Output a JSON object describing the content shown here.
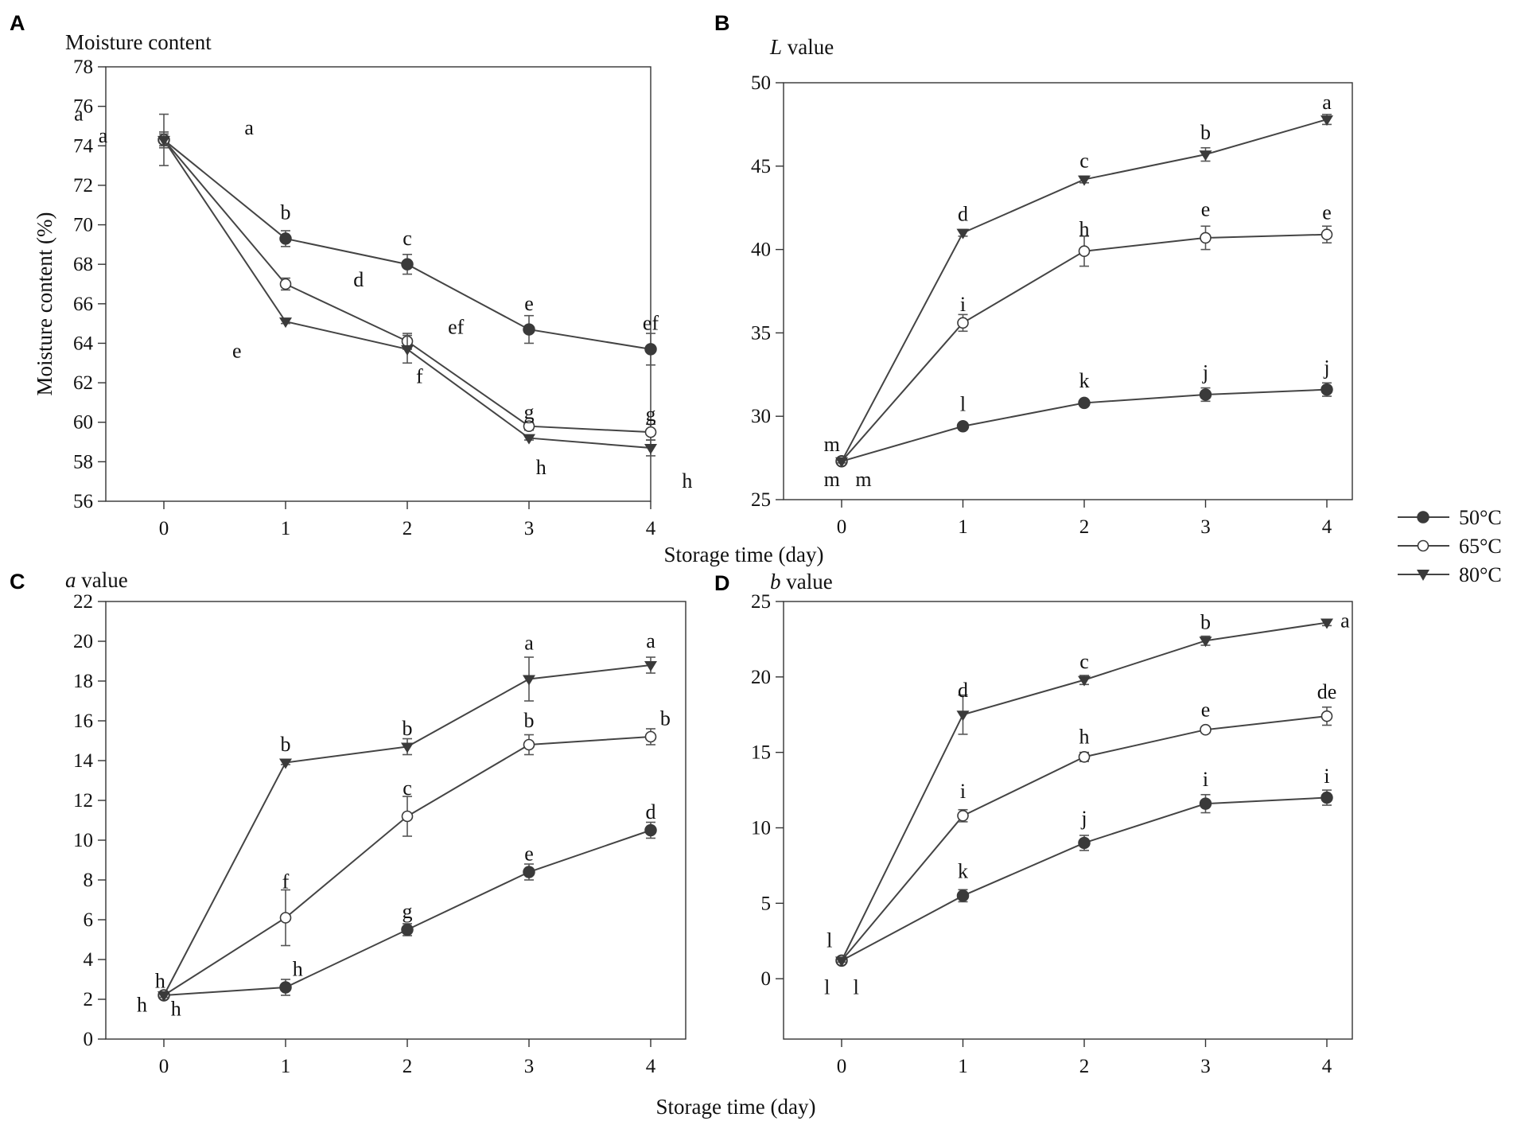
{
  "legend": {
    "entries": [
      {
        "label": "50°C",
        "marker": "filled-circle"
      },
      {
        "label": "65°C",
        "marker": "open-circle"
      },
      {
        "label": "80°C",
        "marker": "filled-triangle-down"
      }
    ]
  },
  "xlabel_shared_top": "Storage time (day)",
  "xlabel_bottom": "Storage time (day)",
  "colors": {
    "line": "#444444",
    "marker": "#3a3a3a",
    "frame": "#333333"
  },
  "chart_data": [
    {
      "panel": "A",
      "type": "line",
      "title": "Moisture content",
      "ylabel": "Moisture content (%)",
      "ylim": [
        56,
        78
      ],
      "yticks": [
        56,
        58,
        60,
        62,
        64,
        66,
        68,
        70,
        72,
        74,
        76,
        78
      ],
      "x": [
        0,
        1,
        2,
        3,
        4
      ],
      "xticks": [
        "0",
        "1",
        "2",
        "3",
        "4"
      ],
      "series": [
        {
          "name": "50°C",
          "values": [
            74.3,
            69.3,
            68.0,
            64.7,
            63.7
          ],
          "errors": [
            1.3,
            0.4,
            0.5,
            0.7,
            0.8
          ],
          "letters": [
            {
              "x": 0,
              "text": "a",
              "dx": -0.7,
              "dy": 1.3
            },
            {
              "x": 1,
              "text": "b",
              "dy": 1.3
            },
            {
              "x": 2,
              "text": "c",
              "dy": 1.3
            },
            {
              "x": 3,
              "text": "e",
              "dy": 1.3
            },
            {
              "x": 4,
              "text": "ef",
              "dy": 1.3
            }
          ]
        },
        {
          "name": "65°C",
          "values": [
            74.3,
            67.0,
            64.1,
            59.8,
            59.5
          ],
          "errors": [
            0.4,
            0.3,
            0.4,
            0.2,
            0.4
          ],
          "letters": [
            {
              "x": 0,
              "text": "a",
              "dx": -0.5,
              "dy": 0.2
            },
            {
              "x": 1,
              "text": "d",
              "dx": 0.6,
              "dy": 0.2
            },
            {
              "x": 2,
              "text": "ef",
              "dx": 0.4,
              "dy": 0.7
            },
            {
              "x": 3,
              "text": "g",
              "dy": 0.7
            },
            {
              "x": 4,
              "text": "g",
              "dy": 0.9
            }
          ]
        },
        {
          "name": "80°C",
          "values": [
            74.3,
            65.1,
            63.7,
            59.2,
            58.7
          ],
          "errors": [
            0.3,
            0.1,
            0.7,
            0.1,
            0.4
          ],
          "letters": [
            {
              "x": 0,
              "text": "a",
              "dx": 0.7,
              "dy": 0.6
            },
            {
              "x": 1,
              "text": "e",
              "dx": -0.4,
              "dy": -1.5
            },
            {
              "x": 2,
              "text": "f",
              "dx": 0.1,
              "dy": -1.4
            },
            {
              "x": 3,
              "text": "h",
              "dx": 0.1,
              "dy": -1.5
            },
            {
              "x": 4,
              "text": "h",
              "dx": 0.3,
              "dy": -1.7
            }
          ]
        }
      ]
    },
    {
      "panel": "B",
      "type": "line",
      "title": "L value",
      "title_var": "L",
      "title_rest": " value",
      "ylabel": "",
      "ylim": [
        25,
        50
      ],
      "yticks": [
        25,
        30,
        35,
        40,
        45,
        50
      ],
      "x": [
        0,
        1,
        2,
        3,
        4
      ],
      "xticks": [
        "0",
        "1",
        "2",
        "3",
        "4"
      ],
      "series": [
        {
          "name": "50°C",
          "values": [
            27.3,
            29.4,
            30.8,
            31.3,
            31.6
          ],
          "errors": [
            0.2,
            0.2,
            0.2,
            0.4,
            0.4
          ],
          "letters": [
            {
              "x": 0,
              "text": "m",
              "dx": -0.08,
              "dy": 1.0
            },
            {
              "x": 1,
              "text": "l",
              "dy": 1.3
            },
            {
              "x": 2,
              "text": "k",
              "dy": 1.3
            },
            {
              "x": 3,
              "text": "j",
              "dy": 1.3
            },
            {
              "x": 4,
              "text": "j",
              "dy": 1.3
            }
          ]
        },
        {
          "name": "65°C",
          "values": [
            27.3,
            35.6,
            39.9,
            40.7,
            40.9
          ],
          "errors": [
            0.2,
            0.5,
            0.9,
            0.7,
            0.5
          ],
          "letters": [
            {
              "x": 0,
              "text": "m",
              "dx": -0.08,
              "dy": -1.1
            },
            {
              "x": 1,
              "text": "i",
              "dy": 1.1
            },
            {
              "x": 2,
              "text": "h",
              "dy": 1.3
            },
            {
              "x": 3,
              "text": "e",
              "dy": 1.7
            },
            {
              "x": 4,
              "text": "e",
              "dy": 1.3
            }
          ]
        },
        {
          "name": "80°C",
          "values": [
            27.3,
            41.0,
            44.2,
            45.7,
            47.8
          ],
          "errors": [
            0.1,
            0.2,
            0.2,
            0.4,
            0.3
          ],
          "letters": [
            {
              "x": 0,
              "text": "m",
              "dx": 0.18,
              "dy": -1.1
            },
            {
              "x": 1,
              "text": "d",
              "dy": 1.1
            },
            {
              "x": 2,
              "text": "c",
              "dy": 1.1
            },
            {
              "x": 3,
              "text": "b",
              "dy": 1.3
            },
            {
              "x": 4,
              "text": "a",
              "dy": 1.0
            }
          ]
        }
      ]
    },
    {
      "panel": "C",
      "type": "line",
      "title": "a value",
      "title_var": "a",
      "title_rest": " value",
      "ylabel": "",
      "ylim": [
        0,
        22
      ],
      "yticks": [
        0,
        2,
        4,
        6,
        8,
        10,
        12,
        14,
        16,
        18,
        20,
        22
      ],
      "x": [
        0,
        1,
        2,
        3,
        4
      ],
      "xticks": [
        "0",
        "1",
        "2",
        "3",
        "4"
      ],
      "series": [
        {
          "name": "50°C",
          "values": [
            2.2,
            2.6,
            5.5,
            8.4,
            10.5
          ],
          "errors": [
            0.1,
            0.4,
            0.3,
            0.4,
            0.4
          ],
          "letters": [
            {
              "x": 0,
              "text": "h",
              "dx": -0.18,
              "dy": -0.5
            },
            {
              "x": 1,
              "text": "h",
              "dx": 0.1,
              "dy": 0.9
            },
            {
              "x": 2,
              "text": "g",
              "dy": 0.9
            },
            {
              "x": 3,
              "text": "e",
              "dy": 0.9
            },
            {
              "x": 4,
              "text": "d",
              "dy": 0.9
            }
          ]
        },
        {
          "name": "65°C",
          "values": [
            2.2,
            6.1,
            11.2,
            14.8,
            15.2
          ],
          "errors": [
            0.1,
            1.4,
            1.0,
            0.5,
            0.4
          ],
          "letters": [
            {
              "x": 0,
              "text": "h",
              "dx": -0.03,
              "dy": 0.7
            },
            {
              "x": 1,
              "text": "f",
              "dy": 1.8
            },
            {
              "x": 2,
              "text": "c",
              "dy": 1.4
            },
            {
              "x": 3,
              "text": "b",
              "dy": 1.2
            },
            {
              "x": 4,
              "text": "b",
              "dx": 0.12,
              "dy": 0.9
            }
          ]
        },
        {
          "name": "80°C",
          "values": [
            2.2,
            13.9,
            14.7,
            18.1,
            18.8
          ],
          "errors": [
            0.1,
            0.1,
            0.4,
            1.1,
            0.4
          ],
          "letters": [
            {
              "x": 0,
              "text": "h",
              "dx": 0.1,
              "dy": -0.7
            },
            {
              "x": 1,
              "text": "b",
              "dy": 0.9
            },
            {
              "x": 2,
              "text": "b",
              "dy": 0.9
            },
            {
              "x": 3,
              "text": "a",
              "dy": 1.8
            },
            {
              "x": 4,
              "text": "a",
              "dy": 1.2
            }
          ]
        }
      ]
    },
    {
      "panel": "D",
      "type": "line",
      "title": "b value",
      "title_var": "b",
      "title_rest": " value",
      "ylabel": "",
      "ylim": [
        -4,
        25
      ],
      "yticks": [
        0,
        5,
        10,
        15,
        20,
        25
      ],
      "x": [
        0,
        1,
        2,
        3,
        4
      ],
      "xticks": [
        "0",
        "1",
        "2",
        "3",
        "4"
      ],
      "series": [
        {
          "name": "50°C",
          "values": [
            1.2,
            5.5,
            9.0,
            11.6,
            12.0
          ],
          "errors": [
            0.2,
            0.4,
            0.5,
            0.6,
            0.5
          ],
          "letters": [
            {
              "x": 0,
              "text": "l",
              "dx": -0.12,
              "dy": -1.8
            },
            {
              "x": 1,
              "text": "k",
              "dy": 1.6
            },
            {
              "x": 2,
              "text": "j",
              "dy": 1.6
            },
            {
              "x": 3,
              "text": "i",
              "dy": 1.6
            },
            {
              "x": 4,
              "text": "i",
              "dy": 1.4
            }
          ]
        },
        {
          "name": "65°C",
          "values": [
            1.2,
            10.8,
            14.7,
            16.5,
            17.4
          ],
          "errors": [
            0.2,
            0.4,
            0.3,
            0.2,
            0.6
          ],
          "letters": [
            {
              "x": 0,
              "text": "l",
              "dx": -0.1,
              "dy": 1.3
            },
            {
              "x": 1,
              "text": "i",
              "dy": 1.6
            },
            {
              "x": 2,
              "text": "h",
              "dy": 1.3
            },
            {
              "x": 3,
              "text": "e",
              "dy": 1.3
            },
            {
              "x": 4,
              "text": "de",
              "dy": 1.6
            }
          ]
        },
        {
          "name": "80°C",
          "values": [
            1.2,
            17.5,
            19.8,
            22.4,
            23.6
          ],
          "errors": [
            0.1,
            1.3,
            0.3,
            0.3,
            0.2
          ],
          "letters": [
            {
              "x": 0,
              "text": "l",
              "dx": 0.12,
              "dy": -1.8
            },
            {
              "x": 1,
              "text": "d",
              "dy": 1.6
            },
            {
              "x": 2,
              "text": "c",
              "dy": 1.2
            },
            {
              "x": 3,
              "text": "b",
              "dy": 1.2
            },
            {
              "x": 4,
              "text": "a",
              "dx": 0.15,
              "dy": 0.1
            }
          ]
        }
      ]
    }
  ]
}
